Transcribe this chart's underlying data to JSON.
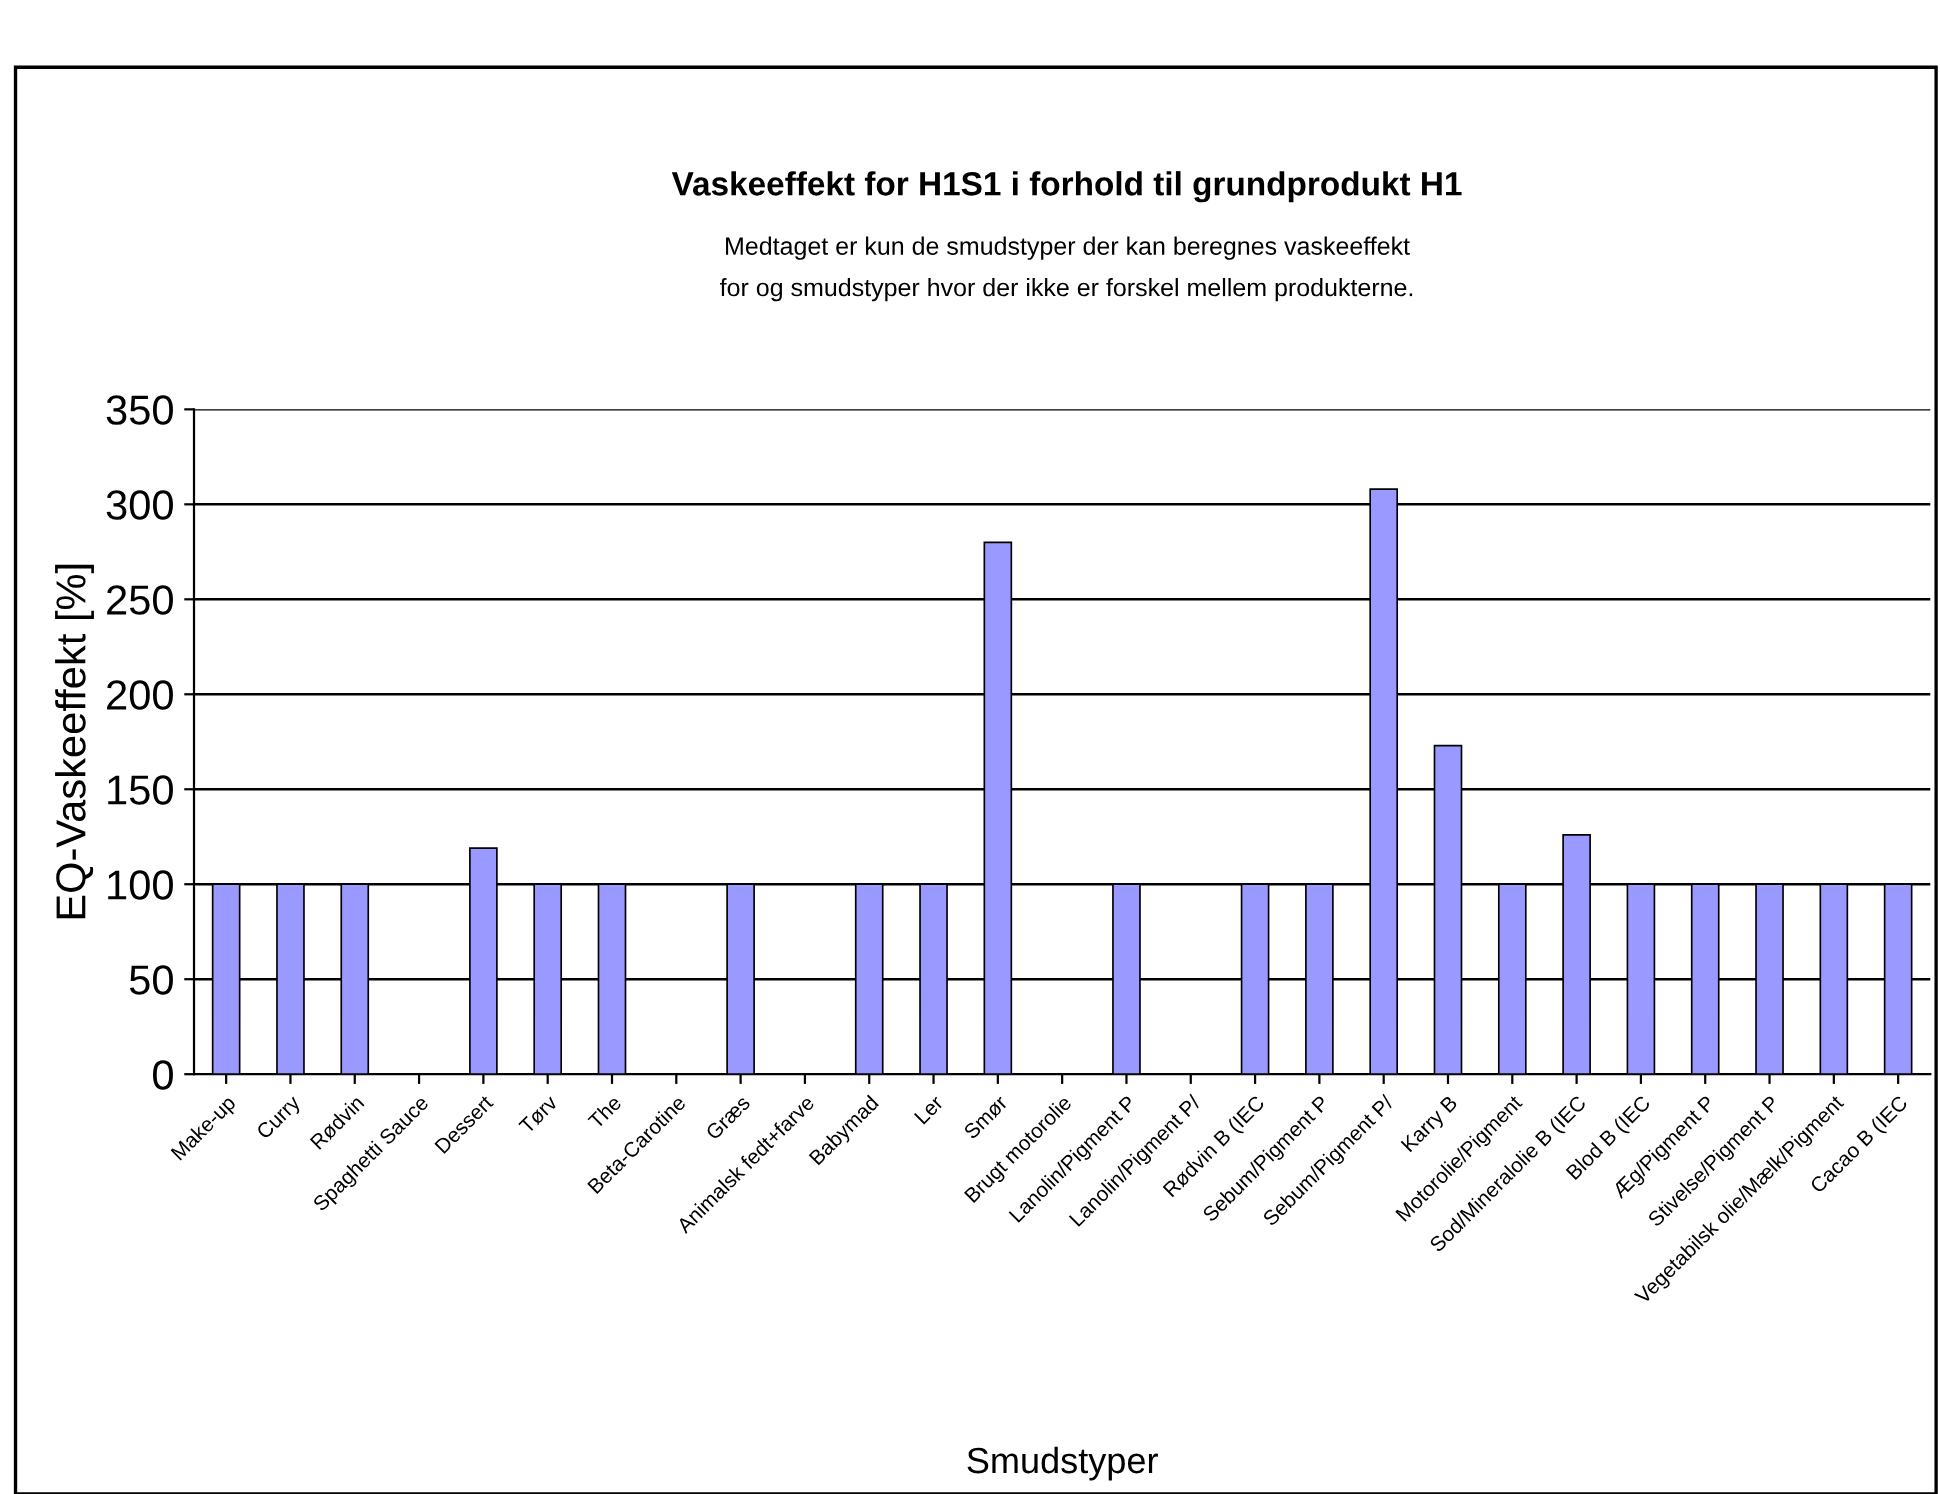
{
  "chart_data": {
    "type": "bar",
    "title": "Vaskeeffekt for H1S1 i forhold til grundprodukt H1",
    "subtitle": "Medtaget er kun de smudstyper der kan beregnes vaskeeffekt\nfor og smudstyper hvor der ikke er forskel mellem produkterne.",
    "xlabel": "Smudstyper",
    "ylabel": "EQ-Vaskeeffekt [%]",
    "categories": [
      "Make-up",
      "Curry",
      "Rødvin",
      "Spaghetti Sauce",
      "Dessert",
      "Tørv",
      "The",
      "Beta-Carotine",
      "Græs",
      "Animalsk fedt+farve",
      "Babymad",
      "Ler",
      "Smør",
      "Brugt motorolie",
      "Lanolin/Pigment P",
      "Lanolin/Pigment P/",
      "Rødvin B (IEC",
      "Sebum/Pigment P",
      "Sebum/Pigment P/",
      "Karry B",
      "Motorolie/Pigment",
      "Sod/Mineralolie B (IEC",
      "Blod B (IEC",
      "Æg/Pigment P",
      "Stivelse/Pigment P",
      "Vegetabilsk olie/Mælk/Pigment",
      "Cacao B (IEC"
    ],
    "values": [
      100,
      100,
      100,
      null,
      119,
      100,
      100,
      null,
      100,
      null,
      100,
      100,
      280,
      null,
      100,
      null,
      100,
      100,
      308,
      173,
      100,
      126,
      100,
      100,
      100,
      100,
      100
    ],
    "color": "#9999ff",
    "ylim": [
      0,
      350
    ],
    "yticks": [
      0,
      50,
      100,
      150,
      200,
      250,
      300,
      350
    ],
    "grid": "y"
  }
}
